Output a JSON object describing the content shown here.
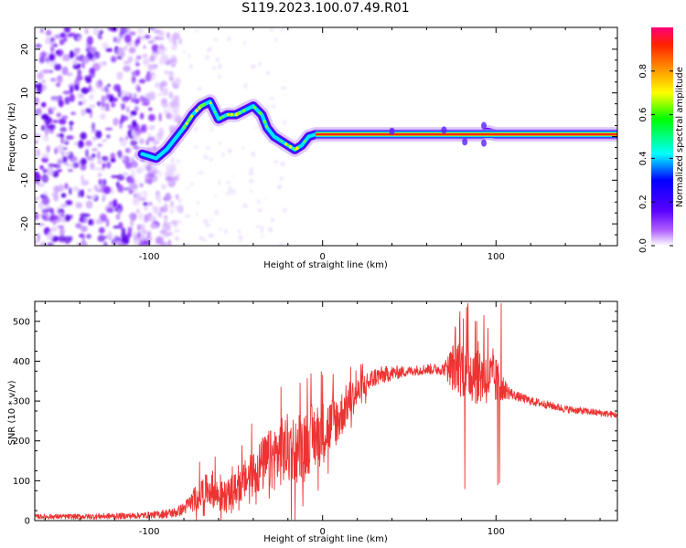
{
  "title": "S119.2023.100.07.49.R01",
  "colors": {
    "snr_line": "#ee3333",
    "axis": "#000000",
    "background": "#ffffff"
  },
  "chart_data": [
    {
      "type": "heatmap",
      "name": "spectrogram",
      "xlabel": "Height of straight line (km)",
      "ylabel": "Frequency (Hz)",
      "xlim": [
        -166,
        170
      ],
      "ylim": [
        -25,
        25
      ],
      "x_ticks": [
        -100,
        0,
        100
      ],
      "x_tick_labels": [
        "-100",
        "0",
        "100"
      ],
      "y_ticks": [
        -20,
        -10,
        0,
        10,
        20
      ],
      "y_tick_labels": [
        "-20",
        "-10",
        "0",
        "10",
        "20"
      ],
      "colorbar": {
        "label": "Normalized spectral amplitude",
        "range": [
          0,
          1
        ],
        "ticks": [
          0.0,
          0.2,
          0.4,
          0.6,
          0.8
        ],
        "tick_labels": [
          "0.0",
          "0.2",
          "0.4",
          "0.6",
          "0.8"
        ],
        "colormap": [
          "#ffffff",
          "#7a00ff",
          "#0000ff",
          "#00ffff",
          "#00ff00",
          "#ffff00",
          "#ff6600",
          "#ff0066"
        ]
      },
      "noise_region_km": [
        -166,
        -90
      ],
      "central_frequency_trace": {
        "x": [
          -104,
          -96,
          -90,
          -84,
          -80,
          -75,
          -70,
          -65,
          -60,
          -55,
          -50,
          -45,
          -40,
          -35,
          -32,
          -28,
          -24,
          -20,
          -16,
          -12,
          -8,
          -4,
          0,
          10,
          40,
          70,
          92,
          95,
          100,
          140,
          170
        ],
        "y": [
          -4,
          -5,
          -3,
          0,
          2,
          5,
          7,
          8,
          4,
          5,
          5,
          6,
          7,
          5,
          2,
          0,
          -1,
          -2,
          -3,
          -2,
          0,
          0.5,
          0.5,
          0.5,
          0.5,
          0.5,
          0.5,
          1,
          0.5,
          0.5,
          0.5
        ]
      },
      "grid": false
    },
    {
      "type": "line",
      "name": "snr",
      "xlabel": "Height of straight line (km)",
      "ylabel": "SNR (10 * v/v)",
      "xlim": [
        -166,
        170
      ],
      "ylim": [
        0,
        550
      ],
      "x_ticks": [
        -100,
        0,
        100
      ],
      "x_tick_labels": [
        "-100",
        "0",
        "100"
      ],
      "y_ticks": [
        0,
        100,
        200,
        300,
        400,
        500
      ],
      "y_tick_labels": [
        "0",
        "100",
        "200",
        "300",
        "400",
        "500"
      ],
      "envelope": {
        "x": [
          -166,
          -140,
          -110,
          -95,
          -85,
          -80,
          -75,
          -70,
          -65,
          -60,
          -55,
          -50,
          -45,
          -40,
          -35,
          -30,
          -25,
          -20,
          -15,
          -10,
          -5,
          0,
          5,
          10,
          15,
          20,
          25,
          30,
          40,
          50,
          60,
          70,
          75,
          80,
          85,
          90,
          95,
          100,
          105,
          110,
          120,
          130,
          140,
          150,
          160,
          170
        ],
        "y": [
          10,
          10,
          12,
          15,
          20,
          30,
          50,
          70,
          80,
          60,
          60,
          80,
          100,
          120,
          140,
          150,
          170,
          180,
          180,
          200,
          210,
          220,
          240,
          260,
          300,
          320,
          340,
          360,
          370,
          375,
          380,
          380,
          385,
          390,
          375,
          370,
          360,
          350,
          330,
          315,
          300,
          290,
          280,
          275,
          270,
          265
        ]
      },
      "noise_amplitude": {
        "x": [
          -166,
          -100,
          -80,
          -70,
          -60,
          -50,
          -40,
          -30,
          -20,
          -10,
          0,
          10,
          20,
          30,
          50,
          70,
          75,
          80,
          90,
          100,
          105,
          110,
          130,
          170
        ],
        "y": [
          6,
          8,
          15,
          40,
          40,
          40,
          60,
          80,
          90,
          90,
          80,
          60,
          40,
          25,
          12,
          15,
          60,
          80,
          80,
          60,
          25,
          12,
          10,
          8
        ]
      },
      "spikes": [
        {
          "x": -62,
          "y": 160
        },
        {
          "x": -24,
          "y": 335
        },
        {
          "x": -13,
          "y": 345
        },
        {
          "x": 0,
          "y": 365
        },
        {
          "x": 79,
          "y": 500
        },
        {
          "x": 83,
          "y": 535
        },
        {
          "x": 88,
          "y": 500
        },
        {
          "x": 93,
          "y": 515
        },
        {
          "x": 103,
          "y": 545
        },
        {
          "x": 82,
          "y": 80
        },
        {
          "x": 102,
          "y": 95
        },
        {
          "x": 101,
          "y": 90
        }
      ],
      "grid": false
    }
  ]
}
